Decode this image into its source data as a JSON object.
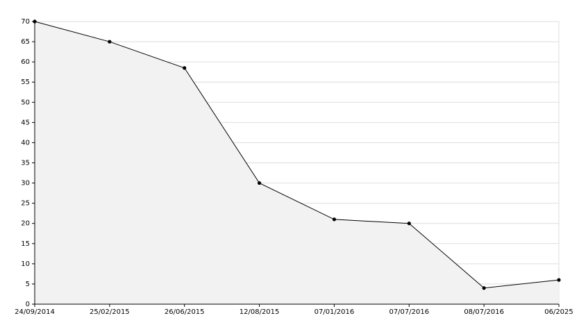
{
  "chart_data": {
    "type": "area",
    "categories": [
      "24/09/2014",
      "25/02/2015",
      "26/06/2015",
      "12/08/2015",
      "07/01/2016",
      "07/07/2016",
      "08/07/2016",
      "06/2025"
    ],
    "values": [
      70,
      65,
      58.5,
      30,
      21,
      20,
      4,
      6
    ],
    "color": "#000000",
    "fill_color": "#f2f2f2",
    "ylim": [
      0,
      70
    ],
    "yticks": [
      0,
      5,
      10,
      15,
      20,
      25,
      30,
      35,
      40,
      45,
      50,
      55,
      60,
      65,
      70
    ],
    "grid": true
  }
}
